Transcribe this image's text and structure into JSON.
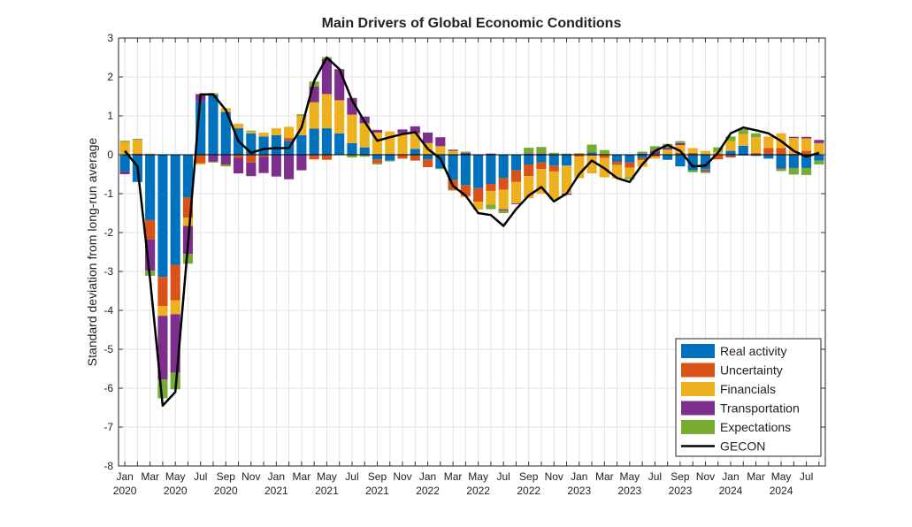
{
  "chart_data": {
    "type": "bar",
    "subtype": "stacked-bar-with-line",
    "title": "Main Drivers of Global Economic Conditions",
    "xlabel": "",
    "ylabel": "Standard deviation from long-run average",
    "ylim": [
      -8,
      3
    ],
    "yticks": [
      3,
      2,
      1,
      0,
      -1,
      -2,
      -3,
      -4,
      -5,
      -6,
      -7,
      -8
    ],
    "grid": true,
    "legend_position": "bottom-right",
    "xtick_labels": [
      {
        "month": "Jan",
        "year": "2020"
      },
      {
        "month": "Mar",
        "year": ""
      },
      {
        "month": "May",
        "year": "2020"
      },
      {
        "month": "Jul",
        "year": ""
      },
      {
        "month": "Sep",
        "year": "2020"
      },
      {
        "month": "Nov",
        "year": ""
      },
      {
        "month": "Jan",
        "year": "2021"
      },
      {
        "month": "Mar",
        "year": ""
      },
      {
        "month": "May",
        "year": "2021"
      },
      {
        "month": "Jul",
        "year": ""
      },
      {
        "month": "Sep",
        "year": "2021"
      },
      {
        "month": "Nov",
        "year": ""
      },
      {
        "month": "Jan",
        "year": "2022"
      },
      {
        "month": "Mar",
        "year": ""
      },
      {
        "month": "May",
        "year": "2022"
      },
      {
        "month": "Jul",
        "year": ""
      },
      {
        "month": "Sep",
        "year": "2022"
      },
      {
        "month": "Nov",
        "year": ""
      },
      {
        "month": "Jan",
        "year": "2023"
      },
      {
        "month": "Mar",
        "year": ""
      },
      {
        "month": "May",
        "year": "2023"
      },
      {
        "month": "Jul",
        "year": ""
      },
      {
        "month": "Sep",
        "year": "2023"
      },
      {
        "month": "Nov",
        "year": ""
      },
      {
        "month": "Jan",
        "year": "2024"
      },
      {
        "month": "Mar",
        "year": ""
      },
      {
        "month": "May",
        "year": "2024"
      },
      {
        "month": "Jul",
        "year": ""
      }
    ],
    "x_start": "Jan 2020",
    "n_months": 56,
    "series": [
      {
        "name": "Real activity",
        "color": "#0072BD",
        "values": [
          -0.43,
          -0.7,
          -1.68,
          -3.14,
          -2.83,
          -1.1,
          1.37,
          1.55,
          1.1,
          0.68,
          0.55,
          0.47,
          0.5,
          0.36,
          0.5,
          0.67,
          0.68,
          0.55,
          0.3,
          0.19,
          -0.12,
          -0.15,
          0,
          0.15,
          -0.12,
          -0.35,
          -0.65,
          -0.78,
          -0.86,
          -0.75,
          -0.6,
          -0.4,
          -0.25,
          -0.2,
          -0.28,
          -0.28,
          0,
          0.06,
          0,
          -0.18,
          -0.2,
          -0.08,
          0.02,
          -0.13,
          -0.3,
          -0.4,
          -0.37,
          0,
          0.1,
          0.23,
          -0.03,
          -0.1,
          -0.33,
          -0.34,
          -0.34,
          -0.15
        ]
      },
      {
        "name": "Uncertainty",
        "color": "#D95319",
        "values": [
          0,
          0.03,
          -0.5,
          -0.75,
          -0.91,
          -0.52,
          -0.22,
          0,
          0,
          -0.08,
          -0.2,
          -0.05,
          0,
          0.07,
          0,
          -0.12,
          -0.13,
          0,
          0,
          0,
          -0.1,
          0.02,
          -0.1,
          -0.15,
          -0.2,
          0,
          -0.25,
          -0.28,
          -0.35,
          -0.18,
          -0.3,
          -0.3,
          -0.3,
          -0.17,
          -0.15,
          0,
          -0.05,
          -0.03,
          -0.08,
          -0.08,
          -0.13,
          -0.06,
          -0.05,
          0,
          0.05,
          0.05,
          -0.03,
          -0.12,
          -0.05,
          0,
          0.05,
          0.17,
          0.17,
          0.03,
          0.1,
          0
        ]
      },
      {
        "name": "Financials",
        "color": "#EDB120",
        "values": [
          0.33,
          0.35,
          0.03,
          -0.25,
          -0.36,
          -0.21,
          -0.03,
          0.04,
          0.1,
          0.12,
          0.05,
          0.1,
          0.18,
          0.29,
          0.5,
          0.68,
          0.88,
          0.85,
          0.73,
          0.62,
          0.57,
          0.58,
          0.55,
          0.4,
          0.3,
          0.22,
          0.1,
          -0.03,
          -0.2,
          -0.35,
          -0.5,
          -0.55,
          -0.57,
          -0.63,
          -0.72,
          -0.72,
          -0.55,
          -0.45,
          -0.5,
          -0.35,
          -0.25,
          -0.17,
          -0.05,
          0.13,
          0.2,
          0.12,
          0.1,
          0.07,
          0.25,
          0.3,
          0.4,
          0.3,
          0.38,
          0.4,
          0.32,
          0.3
        ]
      },
      {
        "name": "Transportation",
        "color": "#7E2F8E",
        "values": [
          -0.07,
          0,
          -0.8,
          -1.64,
          -1.5,
          -0.72,
          0.18,
          -0.18,
          -0.25,
          -0.4,
          -0.35,
          -0.42,
          -0.56,
          -0.63,
          -0.4,
          0.4,
          0.9,
          0.8,
          0.43,
          0.17,
          0.07,
          0,
          0.1,
          0.18,
          0.27,
          0.23,
          0.03,
          0.05,
          0,
          0.03,
          -0.03,
          -0.02,
          0.03,
          0.03,
          0,
          -0.03,
          0,
          0,
          0,
          0,
          0,
          0.03,
          0.08,
          0.05,
          0.05,
          0,
          -0.03,
          0,
          -0.02,
          -0.02,
          0,
          0,
          -0.03,
          0.03,
          0.04,
          0.08
        ]
      },
      {
        "name": "Expectations",
        "color": "#77AC30",
        "values": [
          0.03,
          0.03,
          -0.13,
          -0.48,
          -0.43,
          -0.25,
          0.02,
          -0.02,
          -0.05,
          0,
          0.02,
          0,
          0,
          0,
          0.04,
          0.13,
          0.05,
          0,
          -0.07,
          -0.05,
          -0.03,
          -0.02,
          0,
          0,
          0,
          -0.02,
          -0.02,
          0.03,
          0,
          -0.12,
          -0.07,
          0,
          0.15,
          0.17,
          0.05,
          0.03,
          0.04,
          0.2,
          0.12,
          0,
          -0.05,
          0.05,
          0.12,
          0.1,
          0.05,
          -0.05,
          -0.04,
          0.12,
          0.12,
          0.13,
          0.1,
          0,
          -0.06,
          -0.17,
          -0.18,
          -0.1
        ]
      }
    ],
    "line": {
      "name": "GECON",
      "color": "#000000",
      "values": [
        0.1,
        -0.3,
        -3.2,
        -6.45,
        -6.1,
        -2.3,
        1.55,
        1.55,
        1.15,
        0.35,
        0.05,
        0.15,
        0.17,
        0.17,
        0.7,
        1.9,
        2.5,
        2.2,
        1.4,
        0.85,
        0.36,
        0.45,
        0.53,
        0.58,
        0.15,
        -0.1,
        -0.8,
        -1.05,
        -1.5,
        -1.55,
        -1.83,
        -1.4,
        -1.05,
        -0.83,
        -1.2,
        -1.0,
        -0.5,
        -0.15,
        -0.35,
        -0.6,
        -0.7,
        -0.25,
        0.1,
        0.25,
        0.1,
        -0.3,
        -0.28,
        0.05,
        0.55,
        0.7,
        0.63,
        0.55,
        0.35,
        0.1,
        -0.05,
        0.05
      ]
    }
  }
}
